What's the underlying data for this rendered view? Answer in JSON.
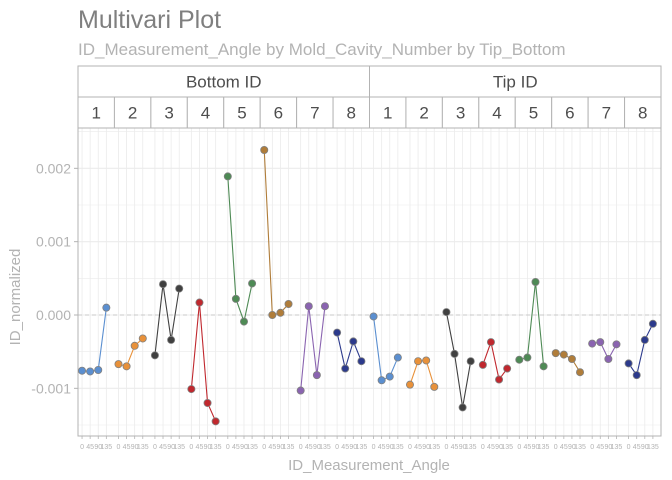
{
  "chart_data": {
    "type": "line",
    "title": "Multivari Plot",
    "subtitle": "ID_Measurement_Angle by Mold_Cavity_Number by Tip_Bottom",
    "xlabel": "ID_Measurement_Angle",
    "ylabel": "ID_normalized",
    "ylim": [
      -0.00165,
      0.00255
    ],
    "yticks": [
      -0.001,
      0.0,
      0.001,
      0.002
    ],
    "ytick_labels": [
      "-0.001",
      "0.000",
      "0.001",
      "0.002"
    ],
    "reference_line": {
      "y": 0.0,
      "style": "dashed"
    },
    "x_angles": [
      0,
      45,
      90,
      135
    ],
    "x_tick_labels": [
      "0",
      "45",
      "90",
      "135"
    ],
    "grid": true,
    "groups": [
      {
        "name": "Bottom ID",
        "cavities": [
          {
            "label": "1",
            "color": "#5b8fd0",
            "values": [
              -0.00076,
              -0.00077,
              -0.00075,
              0.0001
            ]
          },
          {
            "label": "2",
            "color": "#e8913a",
            "values": [
              -0.00067,
              -0.0007,
              -0.00042,
              -0.00032
            ]
          },
          {
            "label": "3",
            "color": "#404040",
            "values": [
              -0.00055,
              0.00042,
              -0.00034,
              0.00036
            ]
          },
          {
            "label": "4",
            "color": "#c0282e",
            "values": [
              -0.00101,
              0.00017,
              -0.0012,
              -0.00145
            ]
          },
          {
            "label": "5",
            "color": "#4e8a55",
            "values": [
              0.00189,
              0.00022,
              -9e-05,
              0.00043
            ]
          },
          {
            "label": "6",
            "color": "#b07d3a",
            "values": [
              0.00225,
              0.0,
              3e-05,
              0.00015
            ]
          },
          {
            "label": "7",
            "color": "#8a64b0",
            "values": [
              -0.00103,
              0.00012,
              -0.00082,
              0.00012
            ]
          },
          {
            "label": "8",
            "color": "#2c3a8c",
            "values": [
              -0.00024,
              -0.00073,
              -0.00036,
              -0.00063
            ]
          }
        ]
      },
      {
        "name": "Tip ID",
        "cavities": [
          {
            "label": "1",
            "color": "#5b8fd0",
            "values": [
              -2e-05,
              -0.00089,
              -0.00084,
              -0.00058
            ]
          },
          {
            "label": "2",
            "color": "#e8913a",
            "values": [
              -0.00095,
              -0.00063,
              -0.00062,
              -0.00098
            ]
          },
          {
            "label": "3",
            "color": "#404040",
            "values": [
              4e-05,
              -0.00053,
              -0.00126,
              -0.00063
            ]
          },
          {
            "label": "4",
            "color": "#c0282e",
            "values": [
              -0.00068,
              -0.00037,
              -0.00088,
              -0.00073
            ]
          },
          {
            "label": "5",
            "color": "#4e8a55",
            "values": [
              -0.00061,
              -0.00058,
              0.00045,
              -0.0007
            ]
          },
          {
            "label": "6",
            "color": "#b07d3a",
            "values": [
              -0.00052,
              -0.00054,
              -0.0006,
              -0.00078
            ]
          },
          {
            "label": "7",
            "color": "#8a64b0",
            "values": [
              -0.00039,
              -0.00037,
              -0.0006,
              -0.0004
            ]
          },
          {
            "label": "8",
            "color": "#2c3a8c",
            "values": [
              -0.00066,
              -0.00082,
              -0.00034,
              -0.00012
            ]
          }
        ]
      }
    ]
  },
  "colors": {
    "strip_fill": "#ffffff",
    "strip_border": "#b3b3b3",
    "panel_border": "#b3b3b3",
    "grid": "#ebebeb",
    "reference": "#c8c8c8",
    "point_edge": "#808080"
  }
}
